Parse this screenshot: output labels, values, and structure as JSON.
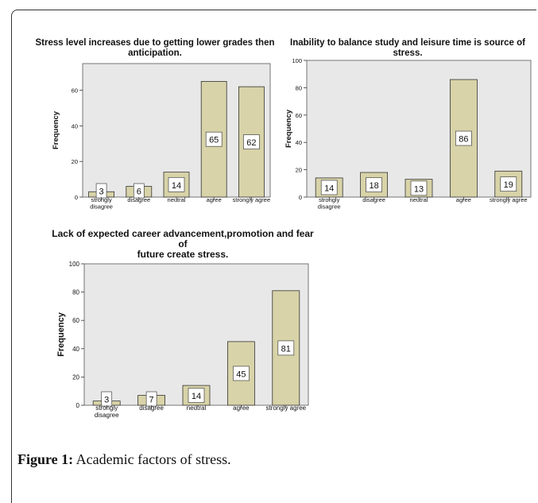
{
  "caption": {
    "label": "Figure 1:",
    "text": "Academic factors of stress."
  },
  "chart_data": [
    {
      "type": "bar",
      "title": "Stress level increases due to getting lower grades then anticipation.",
      "title_lines": [
        "Stress level increases due to getting lower grades then",
        "anticipation."
      ],
      "ylabel": "Frequency",
      "xlabel": "",
      "categories": [
        "strongly disagree",
        "disagree",
        "neutral",
        "agree",
        "strongly agree"
      ],
      "values": [
        3,
        6,
        14,
        65,
        62
      ],
      "ylim": [
        0,
        75
      ],
      "yticks": [
        0,
        20,
        40,
        60
      ],
      "bar_color": "#d8d3a8",
      "plot_bg": "#e8e8e8",
      "grid": false
    },
    {
      "type": "bar",
      "title": "Inability to balance study and leisure time is source of stress.",
      "title_lines": [
        "Inability to balance study and leisure time is source of stress."
      ],
      "ylabel": "Frequency",
      "xlabel": "",
      "categories": [
        "strongly disagree",
        "disagree",
        "neutral",
        "agree",
        "strongly agree"
      ],
      "values": [
        14,
        18,
        13,
        86,
        19
      ],
      "ylim": [
        0,
        100
      ],
      "yticks": [
        0,
        20,
        40,
        60,
        80,
        100
      ],
      "bar_color": "#d8d3a8",
      "plot_bg": "#e8e8e8",
      "grid": false
    },
    {
      "type": "bar",
      "title": "Lack of expected career advancement,promotion and fear of future create stress.",
      "title_lines": [
        "Lack of expected career advancement,promotion and fear of",
        "future create stress."
      ],
      "ylabel": "Frequency",
      "xlabel": "",
      "categories": [
        "strongly disagree",
        "disagree",
        "neutral",
        "agree",
        "strongly agree"
      ],
      "values": [
        3,
        7,
        14,
        45,
        81
      ],
      "ylim": [
        0,
        100
      ],
      "yticks": [
        0,
        20,
        40,
        60,
        80,
        100
      ],
      "bar_color": "#d8d3a8",
      "plot_bg": "#e8e8e8",
      "grid": false
    }
  ]
}
